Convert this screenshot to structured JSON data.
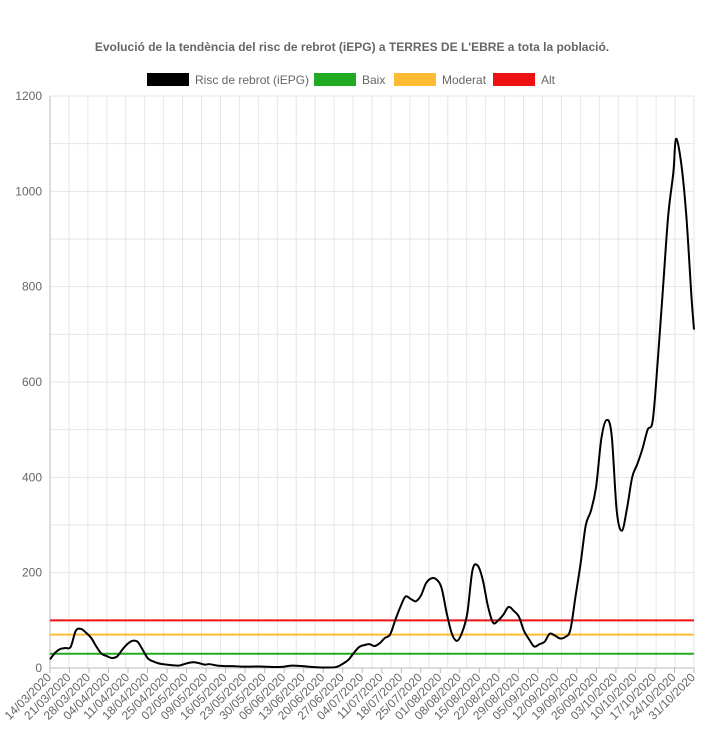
{
  "chart_data": {
    "type": "line",
    "title": "Evolució de la tendència del risc de rebrot (iEPG) a TERRES DE L'EBRE a tota la població.",
    "xlabel": "",
    "ylabel": "",
    "ylim": [
      0,
      1200
    ],
    "y_ticks": [
      0,
      200,
      400,
      600,
      800,
      1000,
      1200
    ],
    "grid": true,
    "legend_position": "top",
    "x_start_date": "2020-03-14",
    "x_end_date": "2020-10-31",
    "x_tick_labels": [
      "14/03/2020",
      "21/03/2020",
      "28/03/2020",
      "04/04/2020",
      "11/04/2020",
      "18/04/2020",
      "25/04/2020",
      "02/05/2020",
      "09/05/2020",
      "16/05/2020",
      "23/05/2020",
      "30/05/2020",
      "06/06/2020",
      "13/06/2020",
      "20/06/2020",
      "27/06/2020",
      "04/07/2020",
      "11/07/2020",
      "18/07/2020",
      "25/07/2020",
      "01/08/2020",
      "08/08/2020",
      "15/08/2020",
      "22/08/2020",
      "29/08/2020",
      "05/09/2020",
      "12/09/2020",
      "19/09/2020",
      "26/09/2020",
      "03/10/2020",
      "10/10/2020",
      "17/10/2020",
      "24/10/2020",
      "31/10/2020"
    ],
    "series": [
      {
        "name": "Risc de rebrot (iEPG)",
        "color": "#000000",
        "points": [
          [
            "2020-03-14",
            18
          ],
          [
            "2020-03-16",
            32
          ],
          [
            "2020-03-18",
            40
          ],
          [
            "2020-03-20",
            42
          ],
          [
            "2020-03-22",
            44
          ],
          [
            "2020-03-24",
            78
          ],
          [
            "2020-03-26",
            82
          ],
          [
            "2020-03-28",
            74
          ],
          [
            "2020-03-30",
            63
          ],
          [
            "2020-04-01",
            45
          ],
          [
            "2020-04-03",
            30
          ],
          [
            "2020-04-05",
            25
          ],
          [
            "2020-04-07",
            21
          ],
          [
            "2020-04-09",
            24
          ],
          [
            "2020-04-11",
            38
          ],
          [
            "2020-04-13",
            50
          ],
          [
            "2020-04-15",
            57
          ],
          [
            "2020-04-17",
            55
          ],
          [
            "2020-04-19",
            38
          ],
          [
            "2020-04-21",
            20
          ],
          [
            "2020-04-23",
            14
          ],
          [
            "2020-04-25",
            10
          ],
          [
            "2020-04-27",
            8
          ],
          [
            "2020-04-30",
            6
          ],
          [
            "2020-05-03",
            5
          ],
          [
            "2020-05-05",
            8
          ],
          [
            "2020-05-07",
            11
          ],
          [
            "2020-05-09",
            12
          ],
          [
            "2020-05-11",
            10
          ],
          [
            "2020-05-13",
            7
          ],
          [
            "2020-05-15",
            8
          ],
          [
            "2020-05-18",
            5
          ],
          [
            "2020-05-21",
            4
          ],
          [
            "2020-05-24",
            4
          ],
          [
            "2020-05-27",
            3
          ],
          [
            "2020-05-31",
            3
          ],
          [
            "2020-06-05",
            3
          ],
          [
            "2020-06-10",
            2
          ],
          [
            "2020-06-13",
            3
          ],
          [
            "2020-06-16",
            5
          ],
          [
            "2020-06-20",
            4
          ],
          [
            "2020-06-24",
            2
          ],
          [
            "2020-06-28",
            1
          ],
          [
            "2020-07-03",
            2
          ],
          [
            "2020-07-06",
            10
          ],
          [
            "2020-07-08",
            18
          ],
          [
            "2020-07-10",
            32
          ],
          [
            "2020-07-12",
            44
          ],
          [
            "2020-07-14",
            48
          ],
          [
            "2020-07-16",
            50
          ],
          [
            "2020-07-18",
            46
          ],
          [
            "2020-07-20",
            52
          ],
          [
            "2020-07-22",
            63
          ],
          [
            "2020-07-24",
            70
          ],
          [
            "2020-07-26",
            100
          ],
          [
            "2020-07-28",
            128
          ],
          [
            "2020-07-30",
            150
          ],
          [
            "2020-08-01",
            145
          ],
          [
            "2020-08-03",
            140
          ],
          [
            "2020-08-05",
            152
          ],
          [
            "2020-08-07",
            178
          ],
          [
            "2020-08-09",
            188
          ],
          [
            "2020-08-11",
            186
          ],
          [
            "2020-08-13",
            168
          ],
          [
            "2020-08-15",
            115
          ],
          [
            "2020-08-17",
            72
          ],
          [
            "2020-08-19",
            57
          ],
          [
            "2020-08-21",
            75
          ],
          [
            "2020-08-23",
            115
          ],
          [
            "2020-08-25",
            205
          ],
          [
            "2020-08-27",
            215
          ],
          [
            "2020-08-29",
            185
          ],
          [
            "2020-08-31",
            130
          ],
          [
            "2020-09-02",
            95
          ],
          [
            "2020-09-04",
            100
          ],
          [
            "2020-09-06",
            112
          ],
          [
            "2020-09-08",
            128
          ],
          [
            "2020-09-10",
            120
          ],
          [
            "2020-09-12",
            108
          ],
          [
            "2020-09-14",
            78
          ],
          [
            "2020-09-16",
            60
          ],
          [
            "2020-09-18",
            45
          ],
          [
            "2020-09-20",
            50
          ],
          [
            "2020-09-22",
            55
          ],
          [
            "2020-09-24",
            72
          ],
          [
            "2020-09-26",
            68
          ],
          [
            "2020-09-28",
            62
          ],
          [
            "2020-09-30",
            65
          ],
          [
            "2020-10-02",
            80
          ],
          [
            "2020-10-04",
            150
          ],
          [
            "2020-10-06",
            220
          ],
          [
            "2020-10-08",
            300
          ],
          [
            "2020-10-10",
            330
          ],
          [
            "2020-10-12",
            380
          ],
          [
            "2020-10-14",
            480
          ],
          [
            "2020-10-16",
            520
          ],
          [
            "2020-10-18",
            490
          ],
          [
            "2020-10-20",
            330
          ],
          [
            "2020-10-22",
            288
          ],
          [
            "2020-10-24",
            335
          ],
          [
            "2020-10-26",
            400
          ],
          [
            "2020-10-28",
            428
          ],
          [
            "2020-10-30",
            460
          ],
          [
            "2020-11-01",
            500
          ],
          [
            "2020-11-03",
            520
          ],
          [
            "2020-11-05",
            650
          ],
          [
            "2020-11-07",
            800
          ],
          [
            "2020-11-09",
            950
          ],
          [
            "2020-11-11",
            1040
          ],
          [
            "2020-11-12",
            1110
          ],
          [
            "2020-11-14",
            1060
          ],
          [
            "2020-11-16",
            950
          ],
          [
            "2020-11-18",
            780
          ],
          [
            "2020-11-19",
            710
          ]
        ]
      },
      {
        "name": "Baix",
        "color": "#22aa22",
        "points": [
          [
            "2020-03-14",
            30
          ],
          [
            "2020-11-19",
            30
          ]
        ]
      },
      {
        "name": "Moderat",
        "color": "#ffbb33",
        "points": [
          [
            "2020-03-14",
            70
          ],
          [
            "2020-11-19",
            70
          ]
        ]
      },
      {
        "name": "Alt",
        "color": "#ee1111",
        "points": [
          [
            "2020-03-14",
            100
          ],
          [
            "2020-11-19",
            100
          ]
        ]
      }
    ]
  }
}
